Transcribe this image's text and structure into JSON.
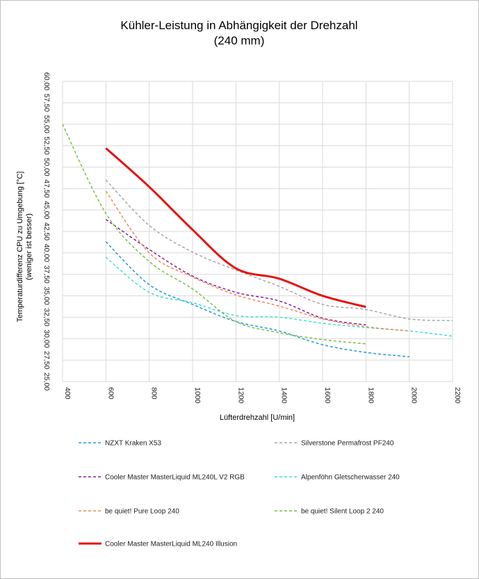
{
  "chart_data": {
    "type": "line",
    "title": "Kühler-Leistung in Abhängigkeit der Drehzahl",
    "subtitle": "(240 mm)",
    "xlabel": "Lüfterdrehzahl [U/min]",
    "ylabel": "Temperaturdifferenz  CPU zu Umgebung [°C]",
    "ylabel2": "(weniger  ist besser)",
    "xlim": [
      400,
      2200
    ],
    "ylim": [
      25,
      60
    ],
    "x_ticks": [
      "400",
      "600",
      "800",
      "1000",
      "1200",
      "1400",
      "1600",
      "1800",
      "2000",
      "2200"
    ],
    "y_ticks": [
      "25,00",
      "27,50",
      "30,00",
      "32,50",
      "35,00",
      "37,50",
      "40,00",
      "42,50",
      "45,00",
      "47,50",
      "50,00",
      "52,50",
      "55,00",
      "57,50",
      "60,00"
    ],
    "grid": "vertical",
    "legend_position": "bottom",
    "series": [
      {
        "name": "NZXT Kraken X53",
        "color": "#1f9bd7",
        "dash": "dashed",
        "width": 1.5,
        "x": [
          600,
          800,
          1000,
          1200,
          1400,
          1600,
          1800,
          2000
        ],
        "y": [
          41.3,
          36.3,
          34.0,
          32.0,
          30.9,
          29.3,
          28.4,
          27.9
        ]
      },
      {
        "name": "Silverstone Permafrost PF240",
        "color": "#a6a6a6",
        "dash": "dashed",
        "width": 1.5,
        "x": [
          600,
          800,
          1000,
          1200,
          1400,
          1600,
          1800,
          2000,
          2200
        ],
        "y": [
          48.5,
          43.2,
          40.1,
          38.0,
          36.1,
          34.0,
          33.4,
          32.3,
          32.1
        ]
      },
      {
        "name": "Cooler Master MasterLiquid ML240L V2 RGB",
        "color": "#8b1a9a",
        "dash": "dashed",
        "width": 1.5,
        "x": [
          600,
          800,
          1000,
          1200,
          1400,
          1600,
          1800
        ],
        "y": [
          43.9,
          40.4,
          37.3,
          35.4,
          34.4,
          32.4,
          31.6
        ]
      },
      {
        "name": "Alpenföhn Gletscherwasser 240",
        "color": "#40e0d0",
        "dash": "dashed",
        "width": 1.5,
        "x": [
          600,
          800,
          1000,
          1200,
          1400,
          1600,
          1800,
          2000,
          2200
        ],
        "y": [
          39.5,
          35.4,
          34.2,
          32.7,
          32.5,
          31.8,
          31.3,
          30.9,
          30.3
        ]
      },
      {
        "name": "be quiet! Pure Loop 240",
        "color": "#f08c4e",
        "dash": "dashed",
        "width": 1.5,
        "x": [
          600,
          800,
          1000,
          1200,
          1400,
          1600,
          1800,
          2000
        ],
        "y": [
          47.2,
          40.0,
          37.2,
          35.1,
          33.8,
          32.3,
          31.4,
          30.9
        ]
      },
      {
        "name": "be quiet! Silent Loop 2 240",
        "color": "#7ac143",
        "dash": "dashed",
        "width": 1.5,
        "x": [
          400,
          600,
          800,
          1000,
          1200,
          1400,
          1600,
          1800
        ],
        "y": [
          55.0,
          44.6,
          39.0,
          35.8,
          32.0,
          30.7,
          29.9,
          29.4
        ]
      },
      {
        "name": "Cooler Master MasterLiquid ML240 Illusion",
        "color": "#e81010",
        "dash": "solid",
        "width": 3,
        "x": [
          600,
          800,
          1000,
          1200,
          1400,
          1600,
          1800
        ],
        "y": [
          52.2,
          47.7,
          42.7,
          38.2,
          37.0,
          35.0,
          33.7
        ]
      }
    ]
  }
}
